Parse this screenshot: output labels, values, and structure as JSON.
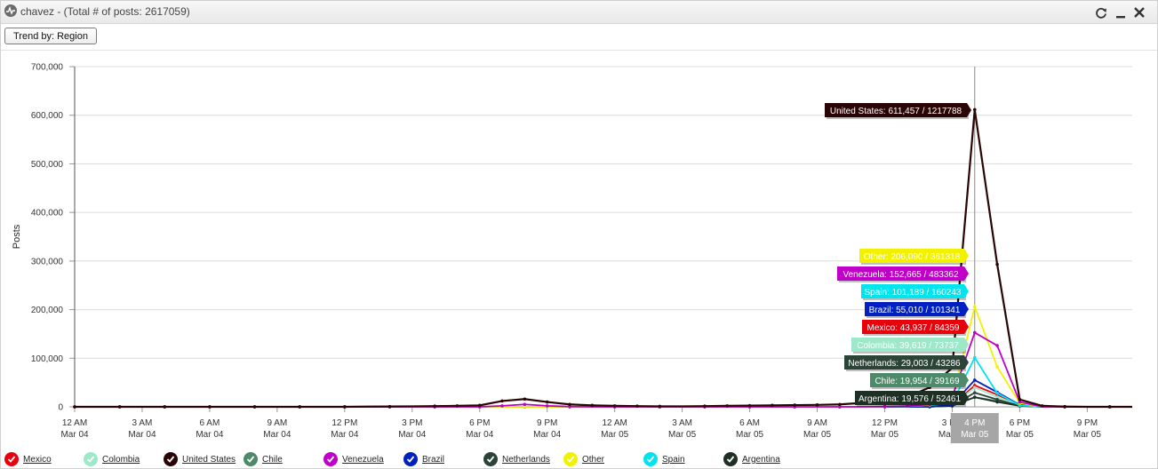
{
  "window": {
    "title": "chavez - (Total # of posts: 2617059)",
    "icons": [
      "activity-icon",
      "refresh-icon",
      "minimize-icon",
      "close-icon"
    ]
  },
  "toolbar": {
    "trend_label": "Trend by: Region"
  },
  "colors": {
    "Mexico": "#e8000b",
    "Colombia": "#9de8c8",
    "United States": "#2a0505",
    "Chile": "#4c8a6a",
    "Venezuela": "#c000c8",
    "Brazil": "#0020c0",
    "Netherlands": "#2c4438",
    "Other": "#f2f200",
    "Spain": "#00e4ee",
    "Argentina": "#1e3024"
  },
  "chart_data": {
    "type": "line",
    "ylabel": "Posts",
    "ylim": [
      0,
      700000
    ],
    "yticks": [
      0,
      100000,
      200000,
      300000,
      400000,
      500000,
      600000,
      700000
    ],
    "ytick_labels": [
      "0",
      "100,000",
      "200,000",
      "300,000",
      "400,000",
      "500,000",
      "600,000",
      "700,000"
    ],
    "x_hours": [
      0,
      1,
      2,
      3,
      4,
      5,
      6,
      7,
      8,
      9,
      10,
      11,
      12,
      13,
      14,
      15,
      16,
      17,
      18,
      19,
      20,
      21,
      22,
      23,
      24,
      25,
      26,
      27,
      28,
      29,
      30,
      31,
      32,
      33,
      34,
      35,
      36,
      37,
      38,
      39,
      40,
      41,
      42,
      43,
      44,
      45,
      46,
      47
    ],
    "xtick_labels": [
      {
        "hour": 0,
        "time": "12 AM",
        "date": "Mar 04"
      },
      {
        "hour": 3,
        "time": "3 AM",
        "date": "Mar 04"
      },
      {
        "hour": 6,
        "time": "6 AM",
        "date": "Mar 04"
      },
      {
        "hour": 9,
        "time": "9 AM",
        "date": "Mar 04"
      },
      {
        "hour": 12,
        "time": "12 PM",
        "date": "Mar 04"
      },
      {
        "hour": 15,
        "time": "3 PM",
        "date": "Mar 04"
      },
      {
        "hour": 18,
        "time": "6 PM",
        "date": "Mar 04"
      },
      {
        "hour": 21,
        "time": "9 PM",
        "date": "Mar 04"
      },
      {
        "hour": 24,
        "time": "12 AM",
        "date": "Mar 05"
      },
      {
        "hour": 27,
        "time": "3 AM",
        "date": "Mar 05"
      },
      {
        "hour": 30,
        "time": "6 AM",
        "date": "Mar 05"
      },
      {
        "hour": 33,
        "time": "9 AM",
        "date": "Mar 05"
      },
      {
        "hour": 36,
        "time": "12 PM",
        "date": "Mar 05"
      },
      {
        "hour": 39,
        "time": "3 PM",
        "date": "Mar 05"
      },
      {
        "hour": 42,
        "time": "6 PM",
        "date": "Mar 05"
      },
      {
        "hour": 45,
        "time": "9 PM",
        "date": "Mar 05"
      }
    ],
    "crosshair": {
      "hour": 40,
      "time": "4 PM",
      "date": "Mar 05"
    },
    "series": [
      {
        "name": "Mexico",
        "values": [
          0,
          0,
          0,
          0,
          0,
          0,
          0,
          0,
          0,
          0,
          0,
          0,
          0,
          0,
          0,
          0,
          0,
          0,
          0,
          0,
          0,
          0,
          0,
          0,
          0,
          0,
          0,
          0,
          0,
          0,
          0,
          0,
          0,
          0,
          0,
          0,
          0,
          0,
          500,
          3000,
          43937,
          25000,
          4000,
          0,
          0,
          0,
          0,
          0
        ]
      },
      {
        "name": "Colombia",
        "values": [
          0,
          0,
          0,
          0,
          0,
          0,
          0,
          0,
          0,
          0,
          0,
          0,
          0,
          0,
          0,
          0,
          0,
          0,
          0,
          0,
          0,
          0,
          0,
          0,
          0,
          0,
          0,
          0,
          0,
          0,
          0,
          0,
          0,
          0,
          0,
          0,
          0,
          0,
          400,
          2500,
          39619,
          20000,
          3000,
          0,
          0,
          0,
          0,
          0
        ]
      },
      {
        "name": "United States",
        "values": [
          0,
          0,
          0,
          0,
          0,
          0,
          0,
          0,
          0,
          0,
          0,
          0,
          0,
          500,
          700,
          1000,
          1500,
          2000,
          3000,
          12000,
          16000,
          10000,
          5000,
          3000,
          2000,
          1500,
          1000,
          1000,
          1500,
          2000,
          2500,
          3000,
          3500,
          4000,
          5000,
          8000,
          12000,
          20000,
          40000,
          80000,
          611457,
          293000,
          15000,
          2000,
          500,
          0,
          0,
          0
        ]
      },
      {
        "name": "Chile",
        "values": [
          0,
          0,
          0,
          0,
          0,
          0,
          0,
          0,
          0,
          0,
          0,
          0,
          0,
          0,
          0,
          0,
          0,
          0,
          0,
          0,
          0,
          0,
          0,
          0,
          0,
          0,
          0,
          0,
          0,
          0,
          0,
          0,
          0,
          0,
          0,
          0,
          0,
          0,
          300,
          2000,
          19954,
          12000,
          2000,
          0,
          0,
          0,
          0,
          0
        ]
      },
      {
        "name": "Venezuela",
        "values": [
          0,
          0,
          0,
          0,
          0,
          0,
          0,
          0,
          0,
          0,
          0,
          0,
          0,
          0,
          0,
          0,
          0,
          0,
          0,
          2000,
          5000,
          2000,
          500,
          0,
          0,
          0,
          0,
          0,
          0,
          0,
          0,
          0,
          0,
          0,
          0,
          0,
          500,
          1500,
          5000,
          20000,
          152665,
          126000,
          10000,
          0,
          0,
          0,
          0,
          0
        ]
      },
      {
        "name": "Brazil",
        "values": [
          0,
          0,
          0,
          0,
          0,
          0,
          0,
          0,
          0,
          0,
          0,
          0,
          0,
          0,
          0,
          0,
          0,
          0,
          0,
          0,
          0,
          0,
          0,
          0,
          0,
          0,
          0,
          0,
          0,
          0,
          0,
          0,
          0,
          0,
          0,
          0,
          0,
          0,
          600,
          4000,
          55010,
          30000,
          4000,
          0,
          0,
          0,
          0,
          0
        ]
      },
      {
        "name": "Netherlands",
        "values": [
          0,
          0,
          0,
          0,
          0,
          0,
          0,
          0,
          0,
          0,
          0,
          0,
          0,
          0,
          0,
          0,
          0,
          0,
          0,
          0,
          0,
          0,
          0,
          0,
          0,
          0,
          0,
          0,
          0,
          0,
          0,
          0,
          0,
          0,
          0,
          0,
          0,
          0,
          300,
          2000,
          29003,
          15000,
          2000,
          0,
          0,
          0,
          0,
          0
        ]
      },
      {
        "name": "Other",
        "values": [
          0,
          0,
          0,
          0,
          0,
          0,
          0,
          0,
          0,
          0,
          0,
          0,
          0,
          0,
          0,
          0,
          0,
          0,
          0,
          0,
          0,
          0,
          0,
          0,
          0,
          0,
          0,
          0,
          0,
          0,
          0,
          0,
          0,
          0,
          0,
          0,
          500,
          1500,
          4000,
          15000,
          206090,
          82000,
          8000,
          0,
          0,
          0,
          0,
          0
        ]
      },
      {
        "name": "Spain",
        "values": [
          0,
          0,
          0,
          0,
          0,
          0,
          0,
          0,
          0,
          0,
          0,
          0,
          0,
          0,
          0,
          0,
          0,
          0,
          0,
          0,
          0,
          0,
          0,
          0,
          0,
          0,
          0,
          0,
          0,
          0,
          0,
          0,
          0,
          0,
          0,
          0,
          300,
          1000,
          3000,
          8000,
          101189,
          28000,
          3000,
          0,
          0,
          0,
          0,
          0
        ]
      },
      {
        "name": "Argentina",
        "values": [
          0,
          0,
          0,
          0,
          0,
          0,
          0,
          0,
          0,
          0,
          0,
          0,
          0,
          0,
          0,
          0,
          0,
          0,
          0,
          0,
          0,
          0,
          0,
          0,
          0,
          0,
          0,
          0,
          0,
          0,
          0,
          0,
          0,
          0,
          0,
          0,
          0,
          0,
          300,
          2000,
          19576,
          10000,
          2000,
          0,
          0,
          0,
          0,
          0
        ]
      }
    ],
    "tooltips": [
      {
        "series": "United States",
        "text": "United States: 611,457 / 1217788"
      },
      {
        "series": "Other",
        "text": "Other: 206,090 / 361318"
      },
      {
        "series": "Venezuela",
        "text": "Venezuela: 152,665 / 483362"
      },
      {
        "series": "Spain",
        "text": "Spain: 101,189 / 160243"
      },
      {
        "series": "Brazil",
        "text": "Brazil: 55,010 / 101341"
      },
      {
        "series": "Mexico",
        "text": "Mexico: 43,937 / 84359"
      },
      {
        "series": "Colombia",
        "text": "Colombia: 39,619 / 73737"
      },
      {
        "series": "Netherlands",
        "text": "Netherlands: 29,003 / 43286"
      },
      {
        "series": "Chile",
        "text": "Chile: 19,954 / 39169"
      },
      {
        "series": "Argentina",
        "text": "Argentina: 19,576 / 52461"
      }
    ],
    "legend": [
      "Mexico",
      "Colombia",
      "United States",
      "Chile",
      "Venezuela",
      "Brazil",
      "Netherlands",
      "Other",
      "Spain",
      "Argentina"
    ],
    "legend_position": "bottom",
    "grid": true
  }
}
